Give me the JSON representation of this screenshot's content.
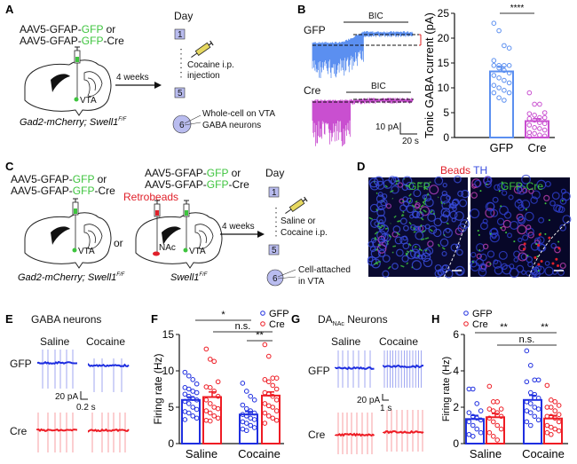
{
  "panels": {
    "A": {
      "label": "A",
      "virus_line1": [
        "AAV5-GFAP-",
        "GFP",
        " or"
      ],
      "virus_line2": [
        "AAV5-GFAP-",
        "GFP",
        "-Cre"
      ],
      "region": "VTA",
      "mouse_line": "Gad2-mCherry; Swell1",
      "mouse_sup": "F/F",
      "arrow_label": "4 weeks",
      "day_title": "Day",
      "day1": "1",
      "day5": "5",
      "day6": "6",
      "treatment1": "Cocaine i.p.",
      "treatment2": "injection",
      "recording1": "Whole-cell on VTA",
      "recording2": "GABA neurons"
    },
    "B": {
      "label": "B",
      "gfp_label": "GFP",
      "cre_label": "Cre",
      "drug": "BIC",
      "scale_y": "10 pA",
      "scale_x": "20 s"
    },
    "C": {
      "label": "C",
      "virus_line1": [
        "AAV5-GFAP-",
        "GFP",
        " or"
      ],
      "virus_line2": [
        "AAV5-GFAP-",
        "GFP",
        "-Cre"
      ],
      "retrobeads": "Retrobeads",
      "or": "or",
      "region_vta": "VTA",
      "region_nac": "NAc",
      "mouse_line1": "Gad2-mCherry; Swell1",
      "mouse_line2": "Swell1",
      "mouse_sup": "F/F",
      "arrow_label": "4 weeks",
      "day_title": "Day",
      "day1": "1",
      "day5": "5",
      "day6": "6",
      "treatment1": "Saline or",
      "treatment2": "Cocaine i.p.",
      "recording1": "Cell-attached",
      "recording2": "in VTA"
    },
    "D": {
      "label": "D",
      "stain1": "Beads",
      "stain2": "TH",
      "image1_label": "GFP",
      "image2_label": "GFP-Cre"
    },
    "E": {
      "label": "E",
      "title": "GABA neurons",
      "col1": "Saline",
      "col2": "Cocaine",
      "row1": "GFP",
      "row2": "Cre",
      "scale_y": "20 pA",
      "scale_x": "0.2 s"
    },
    "F": {
      "label": "F"
    },
    "G": {
      "label": "G",
      "title_main": "DA",
      "title_sub": "NAc",
      "title_rest": " Neurons",
      "col1": "Saline",
      "col2": "Cocaine",
      "row1": "GFP",
      "row2": "Cre",
      "scale_y": "20 pA",
      "scale_x": "1 s"
    },
    "H": {
      "label": "H"
    }
  },
  "colors": {
    "gfp_green": "#3ec43e",
    "retrobeads_red": "#e0202a",
    "th_blue": "#3a4ee0",
    "b_gfp": "#5b8ff0",
    "b_cre": "#c94fd0",
    "gfp_blue": "#1f2fe0",
    "cre_red": "#ee1c24",
    "day_box": "#b9bcef"
  },
  "chart_data": [
    {
      "panel": "B",
      "type": "bar",
      "ylabel": "Tonic GABA current (pA)",
      "categories": [
        "GFP",
        "Cre"
      ],
      "yticks": [
        "0",
        "5",
        "10",
        "15",
        "20",
        "25"
      ],
      "ylim": [
        0,
        25
      ],
      "means": [
        13.3,
        3.3
      ],
      "sem": [
        0.9,
        0.5
      ],
      "points": [
        [
          23,
          21.5,
          18.5,
          18,
          15.5,
          14.5,
          14.5,
          14.5,
          14.5,
          14,
          13.5,
          13,
          12.5,
          12,
          11.5,
          11,
          10.5,
          10,
          9.5,
          9,
          9,
          8,
          7.5
        ],
        [
          9,
          6.7,
          6.7,
          5,
          4.8,
          4.5,
          4,
          4,
          3.8,
          3.5,
          3,
          2.8,
          2.5,
          2,
          1.8,
          1.5,
          1,
          0.8,
          0.5,
          0.3,
          0.2
        ]
      ],
      "significance": [
        {
          "between": [
            "GFP",
            "Cre"
          ],
          "label": "****"
        }
      ]
    },
    {
      "panel": "F",
      "type": "bar",
      "ylabel": "Firing rate (Hz)",
      "categories": [
        "Saline",
        "Cocaine"
      ],
      "yticks": [
        "0",
        "5",
        "10",
        "15"
      ],
      "ylim": [
        0,
        15
      ],
      "legend": "top-right",
      "series": [
        {
          "name": "GFP",
          "means": [
            6.0,
            4.0
          ],
          "sem": [
            0.4,
            0.4
          ],
          "points": [
            [
              9.8,
              9.3,
              8.8,
              8.2,
              7.7,
              7.5,
              7.2,
              7,
              6.8,
              6.5,
              6.2,
              6,
              5.8,
              5.5,
              5,
              4.7,
              4.4,
              4.2,
              3.8,
              3.5,
              3.3
            ],
            [
              8.3,
              7.2,
              6.5,
              6,
              5.3,
              4.8,
              4.5,
              4.2,
              4,
              3.8,
              3.5,
              3.3,
              3,
              2.8,
              2.5,
              2.2,
              2,
              1.8
            ]
          ]
        },
        {
          "name": "Cre",
          "means": [
            6.4,
            6.6
          ],
          "sem": [
            0.7,
            0.5
          ],
          "points": [
            [
              13,
              11.6,
              11.3,
              8.5,
              7.8,
              7.7,
              7.2,
              6.5,
              6,
              5.5,
              5,
              4.8,
              4.5,
              4.2,
              3.8,
              3.5,
              3.2,
              3.1
            ],
            [
              13.6,
              12,
              9,
              9,
              8.8,
              8.5,
              8,
              7.5,
              7,
              6.8,
              6.5,
              6,
              5.5,
              5.2,
              5,
              4.5,
              4.2,
              3.8,
              3.5,
              3.2,
              2.8
            ]
          ]
        }
      ],
      "significance": [
        {
          "between": [
            "Saline GFP",
            "Cocaine GFP"
          ],
          "label": "*"
        },
        {
          "between": [
            "Saline Cre",
            "Cocaine Cre"
          ],
          "label": "n.s."
        },
        {
          "between": [
            "Cocaine GFP",
            "Cocaine Cre"
          ],
          "label": "**"
        }
      ]
    },
    {
      "panel": "H",
      "type": "bar",
      "ylabel": "Firing rate (Hz)",
      "categories": [
        "Saline",
        "Cocaine"
      ],
      "yticks": [
        "0",
        "2",
        "4",
        "6"
      ],
      "ylim": [
        0,
        6
      ],
      "legend": "top-left",
      "series": [
        {
          "name": "GFP",
          "means": [
            1.35,
            2.4
          ],
          "sem": [
            0.2,
            0.25
          ],
          "points": [
            [
              3,
              3,
              2.2,
              1.8,
              1.7,
              1.5,
              1.4,
              1.3,
              1.2,
              1,
              0.8,
              0.6,
              0.5,
              0.4
            ],
            [
              5.1,
              4.3,
              3.5,
              3.5,
              3.4,
              2.8,
              2.7,
              2.5,
              2.3,
              2.2,
              2,
              1.9,
              1.8,
              1.7,
              1.5,
              1.3,
              1.2,
              1
            ]
          ]
        },
        {
          "name": "Cre",
          "means": [
            1.45,
            1.38
          ],
          "sem": [
            0.2,
            0.17
          ],
          "points": [
            [
              3.15,
              2.3,
              2.3,
              1.9,
              1.9,
              1.8,
              1.7,
              1.5,
              1.4,
              1.2,
              1,
              0.8,
              0.6,
              0.4,
              0.2
            ],
            [
              3.2,
              2.4,
              2.3,
              2.1,
              2,
              2,
              1.8,
              1.6,
              1.5,
              1.5,
              1.4,
              1.2,
              1,
              0.9,
              0.8,
              0.7,
              0.6,
              0.5
            ]
          ]
        }
      ],
      "significance": [
        {
          "between": [
            "Saline GFP",
            "Cocaine GFP"
          ],
          "label": "**"
        },
        {
          "between": [
            "Cocaine GFP",
            "Cocaine Cre"
          ],
          "label": "**"
        },
        {
          "between": [
            "Saline Cre",
            "Cocaine Cre"
          ],
          "label": "n.s."
        }
      ]
    }
  ]
}
